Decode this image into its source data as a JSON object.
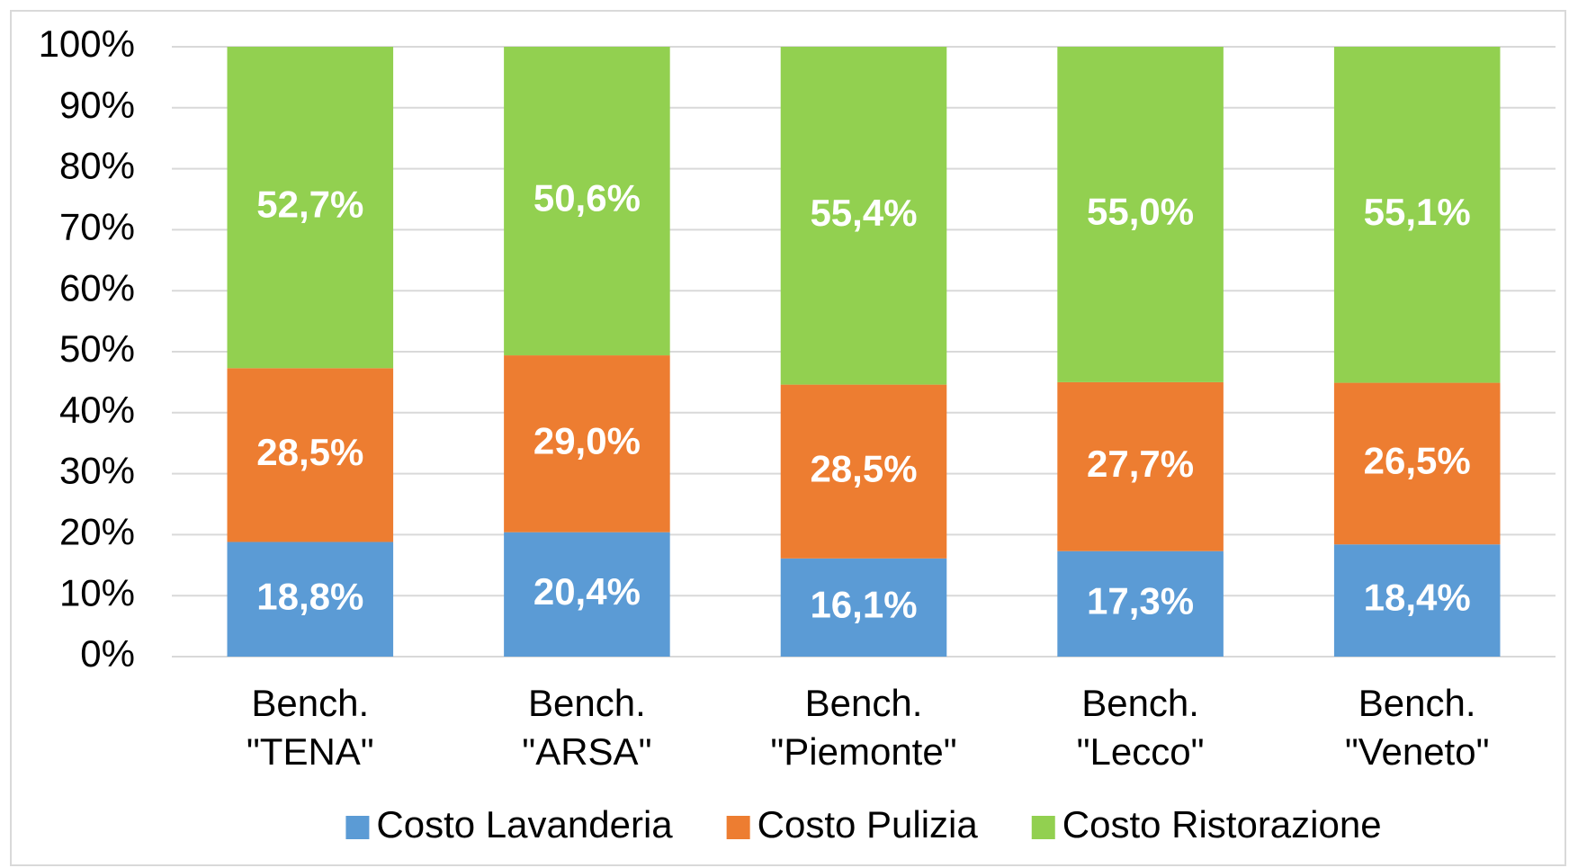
{
  "chart_data": {
    "type": "stacked_bar",
    "categories": [
      "Bench.\n\"TENA\"",
      "Bench.\n\"ARSA\"",
      "Bench.\n\"Piemonte\"",
      "Bench.\n\"Lecco\"",
      "Bench.\n\"Veneto\""
    ],
    "series": [
      {
        "name": "Costo Lavanderia",
        "color": "#5b9bd5",
        "values": [
          18.8,
          20.4,
          16.1,
          17.3,
          18.4
        ],
        "value_labels": [
          "18,8%",
          "20,4%",
          "16,1%",
          "17,3%",
          "18,4%"
        ]
      },
      {
        "name": "Costo Pulizia",
        "color": "#ed7d31",
        "values": [
          28.5,
          29.0,
          28.5,
          27.7,
          26.5
        ],
        "value_labels": [
          "28,5%",
          "29,0%",
          "28,5%",
          "27,7%",
          "26,5%"
        ]
      },
      {
        "name": "Costo Ristorazione",
        "color": "#92d050",
        "values": [
          52.7,
          50.6,
          55.4,
          55.0,
          55.1
        ],
        "value_labels": [
          "52,7%",
          "50,6%",
          "55,4%",
          "55,0%",
          "55,1%"
        ]
      }
    ],
    "ylim": [
      0,
      100
    ],
    "yticks": [
      {
        "value": 0,
        "label": "0%"
      },
      {
        "value": 10,
        "label": "10%"
      },
      {
        "value": 20,
        "label": "20%"
      },
      {
        "value": 30,
        "label": "30%"
      },
      {
        "value": 40,
        "label": "40%"
      },
      {
        "value": 50,
        "label": "50%"
      },
      {
        "value": 60,
        "label": "60%"
      },
      {
        "value": 70,
        "label": "70%"
      },
      {
        "value": 80,
        "label": "80%"
      },
      {
        "value": 90,
        "label": "90%"
      },
      {
        "value": 100,
        "label": "100%"
      }
    ],
    "grid": true,
    "legend": "bottom"
  }
}
